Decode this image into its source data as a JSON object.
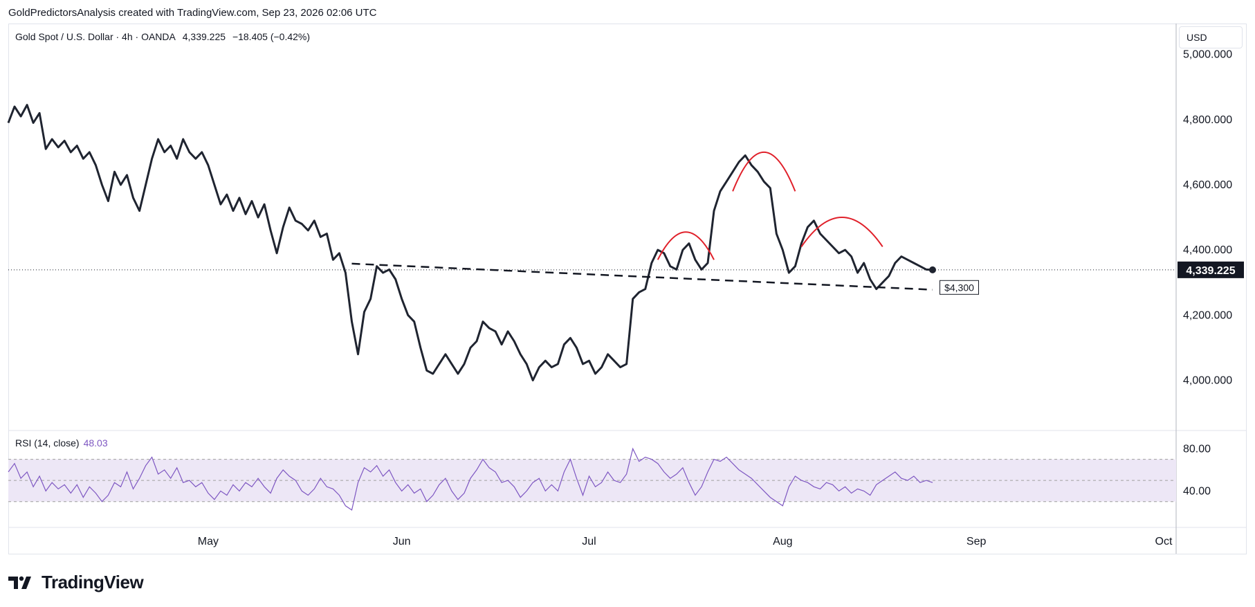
{
  "header": {
    "text": "GoldPredictorsAnalysis created with TradingView.com, Sep 23, 2026 02:06 UTC"
  },
  "legend": {
    "symbol": "Gold Spot / U.S. Dollar · 4h · OANDA",
    "price": "4,339.225",
    "change": "−18.405 (−0.42%)"
  },
  "currency": "USD",
  "rsi_legend": {
    "label": "RSI (14, close)",
    "value": "48.03"
  },
  "last_price_label": "4,339.225",
  "trendline_label": "$4,300",
  "brand": "TradingView",
  "colors": {
    "price_line": "#1f2430",
    "pattern": "#e0202a",
    "rsi": "#7e57c2",
    "rsi_band": "#ede7f6",
    "oversold": "#f8bbd0",
    "last_tag": "#131722"
  },
  "chart_data": [
    {
      "type": "line",
      "title": "Gold Spot / U.S. Dollar · 4h · OANDA",
      "xlabel": "",
      "ylabel": "",
      "ylim": [
        3950,
        5080
      ],
      "x_ticks": [
        "May",
        "Jun",
        "Jul",
        "Aug",
        "Sep",
        "Oct"
      ],
      "y_ticks": [
        "5,000.000",
        "4,800.000",
        "4,600.000",
        "4,400.000",
        "4,200.000",
        "4,000.000"
      ],
      "y_tick_values": [
        5000,
        4800,
        4600,
        4400,
        4200,
        4000
      ],
      "x_tick_days": [
        32,
        63,
        93,
        124,
        155,
        185
      ],
      "x_start": "Apr 16",
      "series": [
        {
          "points": [
            [
              0,
              4790
            ],
            [
              1,
              4840
            ],
            [
              2,
              4810
            ],
            [
              3,
              4845
            ],
            [
              4,
              4790
            ],
            [
              5,
              4820
            ],
            [
              6,
              4710
            ],
            [
              7,
              4740
            ],
            [
              8,
              4715
            ],
            [
              9,
              4735
            ],
            [
              10,
              4700
            ],
            [
              11,
              4720
            ],
            [
              12,
              4680
            ],
            [
              13,
              4700
            ],
            [
              14,
              4660
            ],
            [
              15,
              4600
            ],
            [
              16,
              4550
            ],
            [
              17,
              4640
            ],
            [
              18,
              4600
            ],
            [
              19,
              4630
            ],
            [
              20,
              4560
            ],
            [
              21,
              4520
            ],
            [
              22,
              4600
            ],
            [
              23,
              4680
            ],
            [
              24,
              4740
            ],
            [
              25,
              4700
            ],
            [
              26,
              4720
            ],
            [
              27,
              4680
            ],
            [
              28,
              4740
            ],
            [
              29,
              4700
            ],
            [
              30,
              4680
            ],
            [
              31,
              4700
            ],
            [
              32,
              4660
            ],
            [
              33,
              4600
            ],
            [
              34,
              4540
            ],
            [
              35,
              4570
            ],
            [
              36,
              4520
            ],
            [
              37,
              4560
            ],
            [
              38,
              4510
            ],
            [
              39,
              4550
            ],
            [
              40,
              4500
            ],
            [
              41,
              4540
            ],
            [
              42,
              4460
            ],
            [
              43,
              4390
            ],
            [
              44,
              4470
            ],
            [
              45,
              4530
            ],
            [
              46,
              4490
            ],
            [
              47,
              4480
            ],
            [
              48,
              4460
            ],
            [
              49,
              4490
            ],
            [
              50,
              4440
            ],
            [
              51,
              4450
            ],
            [
              52,
              4370
            ],
            [
              53,
              4390
            ],
            [
              54,
              4330
            ],
            [
              55,
              4180
            ],
            [
              56,
              4080
            ],
            [
              57,
              4210
            ],
            [
              58,
              4250
            ],
            [
              59,
              4350
            ],
            [
              60,
              4330
            ],
            [
              61,
              4340
            ],
            [
              62,
              4310
            ],
            [
              63,
              4250
            ],
            [
              64,
              4200
            ],
            [
              65,
              4180
            ],
            [
              66,
              4100
            ],
            [
              67,
              4030
            ],
            [
              68,
              4020
            ],
            [
              69,
              4050
            ],
            [
              70,
              4080
            ],
            [
              71,
              4050
            ],
            [
              72,
              4020
            ],
            [
              73,
              4050
            ],
            [
              74,
              4100
            ],
            [
              75,
              4120
            ],
            [
              76,
              4180
            ],
            [
              77,
              4160
            ],
            [
              78,
              4150
            ],
            [
              79,
              4110
            ],
            [
              80,
              4150
            ],
            [
              81,
              4120
            ],
            [
              82,
              4080
            ],
            [
              83,
              4050
            ],
            [
              84,
              4000
            ],
            [
              85,
              4040
            ],
            [
              86,
              4060
            ],
            [
              87,
              4040
            ],
            [
              88,
              4050
            ],
            [
              89,
              4110
            ],
            [
              90,
              4130
            ],
            [
              91,
              4100
            ],
            [
              92,
              4050
            ],
            [
              93,
              4060
            ],
            [
              94,
              4020
            ],
            [
              95,
              4040
            ],
            [
              96,
              4080
            ],
            [
              97,
              4060
            ],
            [
              98,
              4040
            ],
            [
              99,
              4050
            ],
            [
              100,
              4250
            ],
            [
              101,
              4270
            ],
            [
              102,
              4280
            ],
            [
              103,
              4360
            ],
            [
              104,
              4400
            ],
            [
              105,
              4390
            ],
            [
              106,
              4350
            ],
            [
              107,
              4340
            ],
            [
              108,
              4400
            ],
            [
              109,
              4420
            ],
            [
              110,
              4370
            ],
            [
              111,
              4340
            ],
            [
              112,
              4360
            ],
            [
              113,
              4520
            ],
            [
              114,
              4580
            ],
            [
              115,
              4610
            ],
            [
              116,
              4640
            ],
            [
              117,
              4670
            ],
            [
              118,
              4690
            ],
            [
              119,
              4660
            ],
            [
              120,
              4640
            ],
            [
              121,
              4610
            ],
            [
              122,
              4590
            ],
            [
              123,
              4450
            ],
            [
              124,
              4400
            ],
            [
              125,
              4330
            ],
            [
              126,
              4350
            ],
            [
              127,
              4420
            ],
            [
              128,
              4470
            ],
            [
              129,
              4490
            ],
            [
              130,
              4450
            ],
            [
              131,
              4430
            ],
            [
              132,
              4410
            ],
            [
              133,
              4390
            ],
            [
              134,
              4400
            ],
            [
              135,
              4380
            ],
            [
              136,
              4330
            ],
            [
              137,
              4360
            ],
            [
              138,
              4310
            ],
            [
              139,
              4280
            ],
            [
              140,
              4300
            ],
            [
              141,
              4320
            ],
            [
              142,
              4360
            ],
            [
              143,
              4380
            ],
            [
              144,
              4370
            ],
            [
              145,
              4360
            ],
            [
              146,
              4350
            ],
            [
              147,
              4340
            ],
            [
              148,
              4339
            ]
          ]
        }
      ]
    },
    {
      "type": "line",
      "title": "RSI (14, close)",
      "ylim": [
        20,
        90
      ],
      "y_ticks": [
        "80.00",
        "40.00"
      ],
      "y_tick_values": [
        80,
        40
      ],
      "bands": [
        70,
        50,
        30
      ],
      "series": [
        {
          "name": "RSI",
          "values": [
            58,
            66,
            52,
            58,
            44,
            54,
            40,
            48,
            42,
            46,
            38,
            46,
            34,
            44,
            38,
            30,
            36,
            48,
            44,
            58,
            42,
            52,
            64,
            72,
            56,
            60,
            52,
            62,
            48,
            50,
            44,
            48,
            38,
            32,
            40,
            36,
            46,
            40,
            48,
            44,
            52,
            44,
            38,
            52,
            60,
            54,
            50,
            40,
            36,
            42,
            52,
            44,
            42,
            36,
            26,
            22,
            48,
            62,
            58,
            64,
            54,
            60,
            48,
            40,
            46,
            38,
            42,
            30,
            36,
            46,
            52,
            40,
            32,
            38,
            52,
            60,
            70,
            62,
            58,
            48,
            50,
            44,
            34,
            40,
            48,
            52,
            40,
            46,
            40,
            58,
            70,
            52,
            36,
            54,
            44,
            48,
            58,
            50,
            48,
            56,
            80,
            68,
            72,
            70,
            66,
            58,
            52,
            56,
            62,
            48,
            36,
            44,
            58,
            70,
            68,
            72,
            66,
            60,
            56,
            52,
            46,
            40,
            34,
            30,
            26,
            44,
            54,
            50,
            48,
            44,
            42,
            48,
            46,
            40,
            44,
            38,
            42,
            40,
            36,
            46,
            50,
            54,
            58,
            52,
            50,
            54,
            48,
            50,
            48
          ]
        }
      ]
    }
  ]
}
